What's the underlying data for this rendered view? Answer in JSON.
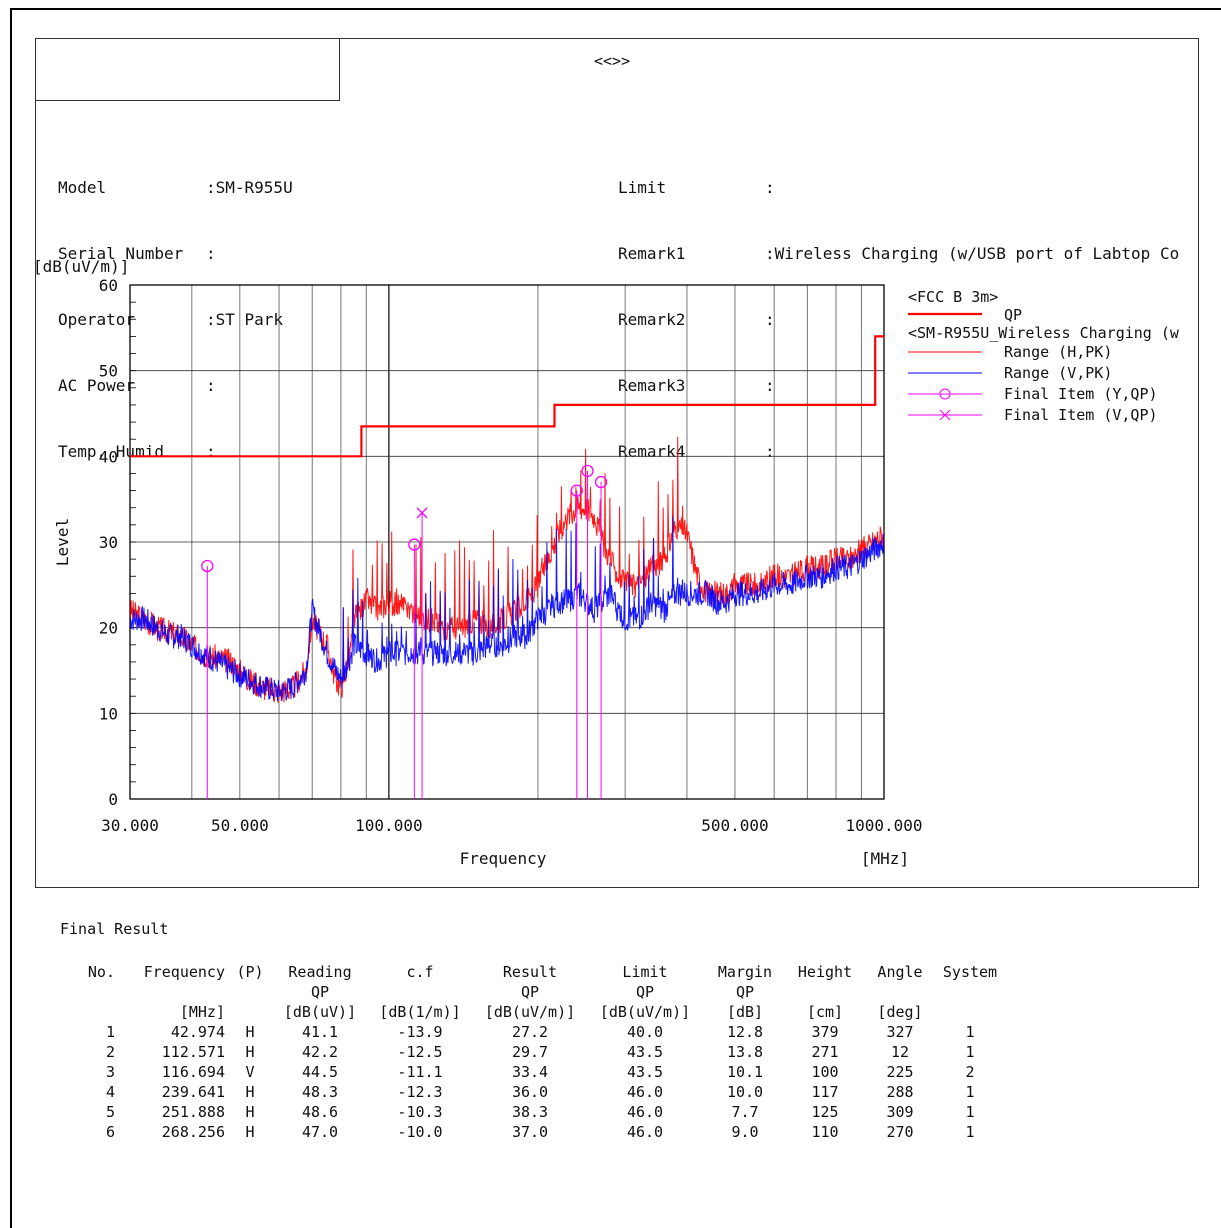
{
  "header": {
    "title": "<<>>",
    "left": [
      {
        "label": "Model",
        "value": ":SM-R955U"
      },
      {
        "label": "Serial Number",
        "value": ":"
      },
      {
        "label": "Operator",
        "value": ":ST Park"
      },
      {
        "label": "AC Power",
        "value": ":"
      },
      {
        "label": "Temp, Humid",
        "value": ":"
      }
    ],
    "right": [
      {
        "label": "Limit",
        "value": ":"
      },
      {
        "label": "Remark1",
        "value": ":Wireless Charging (w/USB port of Labtop Co"
      },
      {
        "label": "Remark2",
        "value": ":"
      },
      {
        "label": "Remark3",
        "value": ":"
      },
      {
        "label": "Remark4",
        "value": ":"
      }
    ]
  },
  "chart_data": {
    "type": "line",
    "ylabel_unit": "[dB(uV/m)]",
    "ylabel": "Level",
    "xlabel": "Frequency",
    "xunit": "[MHz]",
    "x_scale": "log",
    "xlim": [
      30,
      1000
    ],
    "ylim": [
      0,
      60
    ],
    "yticks": [
      0,
      10,
      20,
      30,
      40,
      50,
      60
    ],
    "xtick_labels": [
      {
        "value": 30,
        "label": "30.000"
      },
      {
        "value": 50,
        "label": "50.000"
      },
      {
        "value": 100,
        "label": "100.000"
      },
      {
        "value": 500,
        "label": "500.000"
      },
      {
        "value": 1000,
        "label": "1000.000"
      }
    ],
    "grid": true,
    "legend": {
      "position": "right",
      "groups": [
        {
          "title": "<FCC B 3m>",
          "items": [
            {
              "name": "QP",
              "color": "#ff0000",
              "style": "thick-line"
            }
          ]
        },
        {
          "title": "<SM-R955U_Wireless Charging (w",
          "items": [
            {
              "name": "Range (H,PK)",
              "color": "#ff0000",
              "style": "line"
            },
            {
              "name": "Range (V,PK)",
              "color": "#0000ff",
              "style": "line"
            },
            {
              "name": "Final Item (Y,QP)",
              "color": "#ff00ff",
              "style": "circle"
            },
            {
              "name": "Final Item (V,QP)",
              "color": "#ff00ff",
              "style": "cross"
            }
          ]
        }
      ]
    },
    "limit_line": {
      "name": "QP",
      "color": "#ff0000",
      "steps": [
        {
          "from": 30,
          "to": 88,
          "level": 40.0
        },
        {
          "from": 88,
          "to": 216,
          "level": 43.5
        },
        {
          "from": 216,
          "to": 960,
          "level": 46.0
        },
        {
          "from": 960,
          "to": 1000,
          "level": 54.0
        }
      ]
    },
    "series": [
      {
        "name": "Range (H,PK)",
        "color": "#ff0000",
        "x": [
          30,
          32,
          34,
          36,
          38,
          40,
          42,
          45,
          48,
          52,
          56,
          60,
          64,
          68,
          70,
          73,
          75,
          78,
          80,
          83,
          85,
          90,
          95,
          100,
          110,
          120,
          130,
          140,
          150,
          160,
          170,
          180,
          190,
          200,
          210,
          220,
          230,
          240,
          250,
          260,
          270,
          280,
          290,
          300,
          320,
          340,
          360,
          380,
          400,
          420,
          440,
          460,
          480,
          500,
          520,
          560,
          600,
          650,
          700,
          750,
          800,
          850,
          900,
          950,
          1000
        ],
        "y": [
          22,
          21,
          20,
          19.5,
          19,
          18,
          17,
          16.5,
          16,
          14,
          13,
          12.5,
          13,
          15,
          21,
          19,
          18,
          14,
          13,
          16,
          21,
          23,
          22,
          23,
          22,
          21,
          20,
          20,
          21,
          20,
          21,
          22,
          23,
          25,
          28,
          31,
          33,
          34,
          34,
          33,
          30,
          28,
          26,
          25,
          25,
          27,
          28,
          32,
          31,
          26,
          24,
          24,
          24,
          25,
          25,
          25,
          26,
          26,
          27,
          27,
          28,
          28,
          29,
          30,
          31
        ]
      },
      {
        "name": "Range (V,PK)",
        "color": "#0000ff",
        "x": [
          30,
          32,
          34,
          36,
          38,
          40,
          42,
          45,
          48,
          52,
          56,
          60,
          64,
          68,
          70,
          73,
          75,
          78,
          80,
          83,
          85,
          90,
          95,
          100,
          110,
          120,
          130,
          140,
          150,
          160,
          170,
          180,
          190,
          200,
          210,
          220,
          230,
          240,
          250,
          260,
          270,
          280,
          290,
          300,
          320,
          340,
          360,
          380,
          400,
          420,
          440,
          460,
          480,
          500,
          520,
          560,
          600,
          650,
          700,
          750,
          800,
          850,
          900,
          950,
          1000
        ],
        "y": [
          21,
          21,
          20,
          19,
          19,
          18,
          17,
          16,
          15,
          14,
          13,
          12.5,
          13,
          15,
          22,
          19,
          17,
          15,
          14,
          16,
          18,
          17,
          16,
          17,
          17,
          17,
          17,
          17,
          17,
          18,
          18,
          19,
          19,
          21,
          22,
          23,
          23,
          24,
          23,
          22,
          23,
          24,
          22,
          21,
          21,
          23,
          22,
          24,
          24,
          24,
          24,
          23,
          23,
          24,
          24,
          24,
          25,
          25,
          26,
          26,
          27,
          27,
          28,
          29,
          30
        ]
      }
    ],
    "final_items": [
      {
        "freq": 42.974,
        "level": 27.2,
        "pol": "H",
        "marker": "circle"
      },
      {
        "freq": 112.571,
        "level": 29.7,
        "pol": "H",
        "marker": "circle"
      },
      {
        "freq": 116.694,
        "level": 33.4,
        "pol": "V",
        "marker": "cross"
      },
      {
        "freq": 239.641,
        "level": 36.0,
        "pol": "H",
        "marker": "circle"
      },
      {
        "freq": 251.888,
        "level": 38.3,
        "pol": "H",
        "marker": "circle"
      },
      {
        "freq": 268.256,
        "level": 37.0,
        "pol": "H",
        "marker": "circle"
      }
    ]
  },
  "results": {
    "title": "Final Result",
    "headers": [
      "No.",
      "Frequency",
      "(P)",
      "Reading",
      "c.f",
      "Result",
      "Limit",
      "Margin",
      "Height",
      "Angle",
      "System"
    ],
    "sub1": [
      "",
      "",
      "",
      "QP",
      "",
      "QP",
      "QP",
      "QP",
      "",
      "",
      ""
    ],
    "units": [
      "",
      "[MHz]",
      "",
      "[dB(uV)]",
      "[dB(1/m)]",
      "[dB(uV/m)]",
      "[dB(uV/m)]",
      "[dB]",
      "[cm]",
      "[deg]",
      ""
    ],
    "rows": [
      [
        "1",
        "42.974",
        "H",
        "41.1",
        "-13.9",
        "27.2",
        "40.0",
        "12.8",
        "379",
        "327",
        "1"
      ],
      [
        "2",
        "112.571",
        "H",
        "42.2",
        "-12.5",
        "29.7",
        "43.5",
        "13.8",
        "271",
        "12",
        "1"
      ],
      [
        "3",
        "116.694",
        "V",
        "44.5",
        "-11.1",
        "33.4",
        "43.5",
        "10.1",
        "100",
        "225",
        "2"
      ],
      [
        "4",
        "239.641",
        "H",
        "48.3",
        "-12.3",
        "36.0",
        "46.0",
        "10.0",
        "117",
        "288",
        "1"
      ],
      [
        "5",
        "251.888",
        "H",
        "48.6",
        "-10.3",
        "38.3",
        "46.0",
        "7.7",
        "125",
        "309",
        "1"
      ],
      [
        "6",
        "268.256",
        "H",
        "47.0",
        "-10.0",
        "37.0",
        "46.0",
        "9.0",
        "110",
        "270",
        "1"
      ]
    ]
  }
}
